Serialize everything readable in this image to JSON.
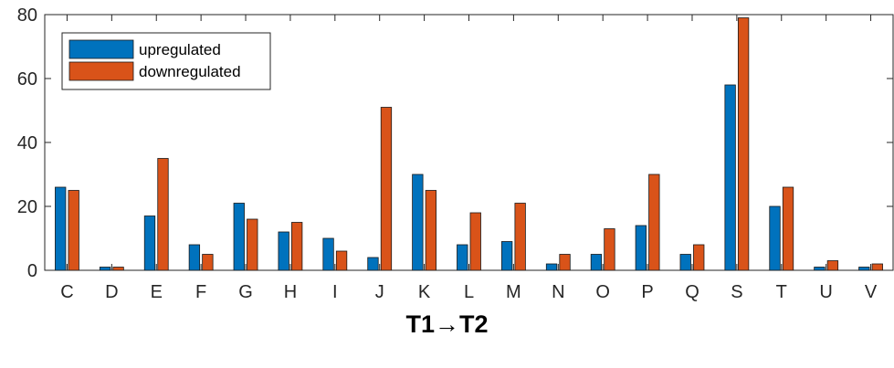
{
  "chart_data": {
    "type": "bar",
    "categories": [
      "C",
      "D",
      "E",
      "F",
      "G",
      "H",
      "I",
      "J",
      "K",
      "L",
      "M",
      "N",
      "O",
      "P",
      "Q",
      "S",
      "T",
      "U",
      "V"
    ],
    "series": [
      {
        "name": "upregulated",
        "color": "#0072BD",
        "values": [
          26,
          1,
          17,
          8,
          21,
          12,
          10,
          4,
          30,
          8,
          9,
          2,
          5,
          14,
          5,
          58,
          20,
          1,
          1
        ]
      },
      {
        "name": "downregulated",
        "color": "#D95319",
        "values": [
          25,
          1,
          35,
          5,
          16,
          15,
          6,
          51,
          25,
          18,
          21,
          5,
          13,
          30,
          8,
          79,
          26,
          3,
          2
        ]
      }
    ],
    "yticks": [
      0,
      20,
      40,
      60,
      80
    ],
    "ylim": [
      0,
      80
    ],
    "legend_position": "top-left",
    "xlabel": "T1→T2",
    "ylabel": "",
    "title": ""
  }
}
